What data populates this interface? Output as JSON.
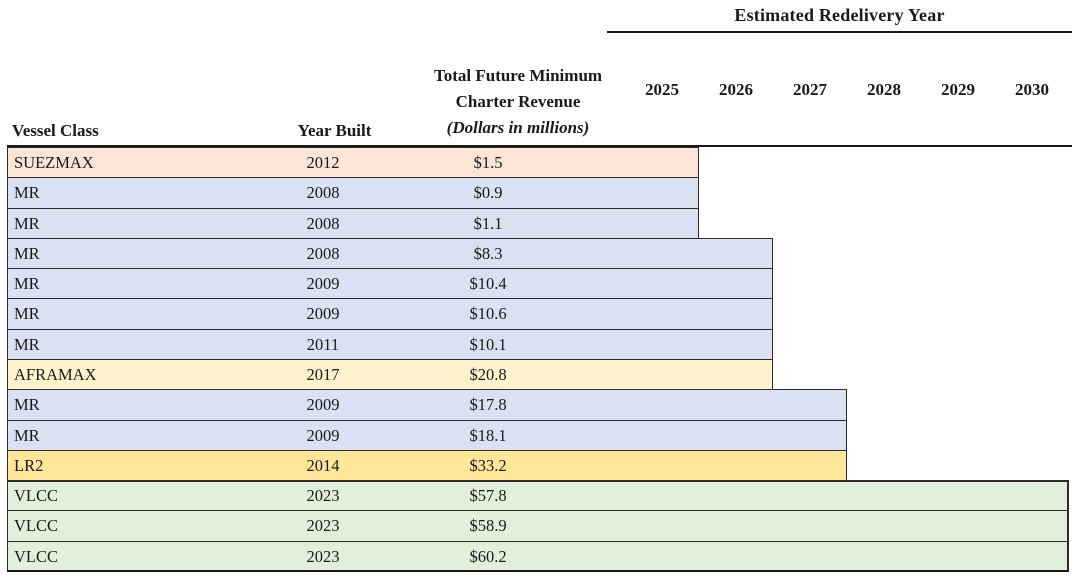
{
  "header": {
    "redelivery_title": "Estimated Redelivery Year",
    "vessel_class_label": "Vessel Class",
    "year_built_label": "Year Built",
    "revenue_line1": "Total Future Minimum",
    "revenue_line2": "Charter Revenue",
    "revenue_line3": "(Dollars in millions)"
  },
  "colors": {
    "SUEZMAX": "#FCE4D6",
    "MR": "#D9E1F2",
    "AFRAMAX": "#FFF2CC",
    "LR2": "#FFE699",
    "VLCC": "#E2EFDA",
    "row_border": "#2b2b2b",
    "rule": "#1a1a1a"
  },
  "chart_data": {
    "type": "table",
    "title": "Estimated Redelivery Year",
    "columns": [
      "Vessel Class",
      "Year Built",
      "Total Future Minimum Charter Revenue (Dollars in millions)",
      "Estimated Redelivery Year"
    ],
    "x_axis_years": [
      "2025",
      "2026",
      "2027",
      "2028",
      "2029",
      "2030"
    ],
    "legend_position": "none",
    "grid": false,
    "rows": [
      {
        "vessel_class": "SUEZMAX",
        "year_built": "2012",
        "revenue": "$1.5",
        "revenue_millions": 1.5,
        "redelivery_year": 2025
      },
      {
        "vessel_class": "MR",
        "year_built": "2008",
        "revenue": "$0.9",
        "revenue_millions": 0.9,
        "redelivery_year": 2025
      },
      {
        "vessel_class": "MR",
        "year_built": "2008",
        "revenue": "$1.1",
        "revenue_millions": 1.1,
        "redelivery_year": 2025
      },
      {
        "vessel_class": "MR",
        "year_built": "2008",
        "revenue": "$8.3",
        "revenue_millions": 8.3,
        "redelivery_year": 2026
      },
      {
        "vessel_class": "MR",
        "year_built": "2009",
        "revenue": "$10.4",
        "revenue_millions": 10.4,
        "redelivery_year": 2026
      },
      {
        "vessel_class": "MR",
        "year_built": "2009",
        "revenue": "$10.6",
        "revenue_millions": 10.6,
        "redelivery_year": 2026
      },
      {
        "vessel_class": "MR",
        "year_built": "2011",
        "revenue": "$10.1",
        "revenue_millions": 10.1,
        "redelivery_year": 2026
      },
      {
        "vessel_class": "AFRAMAX",
        "year_built": "2017",
        "revenue": "$20.8",
        "revenue_millions": 20.8,
        "redelivery_year": 2026
      },
      {
        "vessel_class": "MR",
        "year_built": "2009",
        "revenue": "$17.8",
        "revenue_millions": 17.8,
        "redelivery_year": 2027
      },
      {
        "vessel_class": "MR",
        "year_built": "2009",
        "revenue": "$18.1",
        "revenue_millions": 18.1,
        "redelivery_year": 2027
      },
      {
        "vessel_class": "LR2",
        "year_built": "2014",
        "revenue": "$33.2",
        "revenue_millions": 33.2,
        "redelivery_year": 2027
      },
      {
        "vessel_class": "VLCC",
        "year_built": "2023",
        "revenue": "$57.8",
        "revenue_millions": 57.8,
        "redelivery_year": 2030
      },
      {
        "vessel_class": "VLCC",
        "year_built": "2023",
        "revenue": "$58.9",
        "revenue_millions": 58.9,
        "redelivery_year": 2030
      },
      {
        "vessel_class": "VLCC",
        "year_built": "2023",
        "revenue": "$60.2",
        "revenue_millions": 60.2,
        "redelivery_year": 2030
      }
    ]
  }
}
